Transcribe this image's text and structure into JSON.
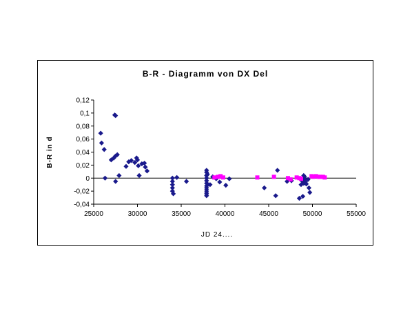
{
  "chart_data": {
    "type": "scatter",
    "title": "B-R - Diagramm von DX Del",
    "xlabel": "JD 24....",
    "ylabel": "B-R in d",
    "xlim": [
      25000,
      55000
    ],
    "ylim": [
      -0.04,
      0.12
    ],
    "x_ticks": [
      "25000",
      "30000",
      "35000",
      "40000",
      "45000",
      "50000",
      "55000"
    ],
    "y_ticks": [
      "-0,04",
      "-0,02",
      "0",
      "0,02",
      "0,04",
      "0,06",
      "0,08",
      "0,1",
      "0,12"
    ],
    "grid": false,
    "zero_line": true,
    "series": [
      {
        "marker": "diamond",
        "color": "#1a1a8c",
        "points": [
          [
            25800,
            0.069
          ],
          [
            25900,
            0.054
          ],
          [
            26200,
            0.044
          ],
          [
            26300,
            0.0
          ],
          [
            27000,
            0.028
          ],
          [
            27300,
            0.031
          ],
          [
            27500,
            0.034
          ],
          [
            27700,
            0.036
          ],
          [
            27400,
            0.097
          ],
          [
            27500,
            0.096
          ],
          [
            27500,
            -0.005
          ],
          [
            27900,
            0.004
          ],
          [
            28700,
            0.018
          ],
          [
            29000,
            0.025
          ],
          [
            29300,
            0.027
          ],
          [
            29700,
            0.024
          ],
          [
            29900,
            0.031
          ],
          [
            30000,
            0.028
          ],
          [
            30100,
            0.019
          ],
          [
            30200,
            0.004
          ],
          [
            30500,
            0.022
          ],
          [
            30800,
            0.023
          ],
          [
            30900,
            0.017
          ],
          [
            31100,
            0.011
          ],
          [
            34000,
            0.0
          ],
          [
            34000,
            -0.005
          ],
          [
            34000,
            -0.01
          ],
          [
            34000,
            -0.015
          ],
          [
            34000,
            -0.02
          ],
          [
            34100,
            -0.024
          ],
          [
            34500,
            0.001
          ],
          [
            35600,
            -0.005
          ],
          [
            37900,
            0.012
          ],
          [
            37900,
            0.009
          ],
          [
            37900,
            0.004
          ],
          [
            37900,
            0.0
          ],
          [
            37900,
            -0.004
          ],
          [
            37900,
            -0.008
          ],
          [
            37900,
            -0.012
          ],
          [
            37900,
            -0.015
          ],
          [
            37900,
            -0.018
          ],
          [
            37900,
            -0.021
          ],
          [
            37900,
            -0.024
          ],
          [
            37900,
            -0.027
          ],
          [
            38000,
            0.006
          ],
          [
            38000,
            -0.009
          ],
          [
            38300,
            -0.01
          ],
          [
            38600,
            0.002
          ],
          [
            39000,
            -0.001
          ],
          [
            39400,
            -0.006
          ],
          [
            40100,
            -0.011
          ],
          [
            40500,
            -0.001
          ],
          [
            44500,
            -0.015
          ],
          [
            45800,
            -0.027
          ],
          [
            46000,
            0.012
          ],
          [
            47100,
            -0.005
          ],
          [
            47600,
            -0.004
          ],
          [
            48500,
            -0.031
          ],
          [
            48900,
            -0.028
          ],
          [
            48700,
            -0.01
          ],
          [
            48800,
            -0.004
          ],
          [
            48900,
            0.0
          ],
          [
            49000,
            0.004
          ],
          [
            49000,
            -0.008
          ],
          [
            49100,
            0.002
          ],
          [
            49200,
            -0.002
          ],
          [
            49200,
            -0.006
          ],
          [
            49300,
            -0.009
          ],
          [
            49500,
            -0.002
          ],
          [
            49600,
            -0.015
          ],
          [
            49700,
            -0.022
          ]
        ]
      },
      {
        "marker": "square",
        "color": "#ff00ff",
        "points": [
          [
            38800,
            0.001
          ],
          [
            39200,
            0.002
          ],
          [
            39500,
            0.003
          ],
          [
            39800,
            0.001
          ],
          [
            43700,
            0.001
          ],
          [
            45600,
            0.002
          ],
          [
            47200,
            0.0
          ],
          [
            47500,
            -0.002
          ],
          [
            48200,
            0.001
          ],
          [
            48500,
            0.0
          ],
          [
            48700,
            -0.001
          ],
          [
            49900,
            0.003
          ],
          [
            50100,
            0.002
          ],
          [
            50400,
            0.003
          ],
          [
            50700,
            0.002
          ],
          [
            50900,
            0.002
          ],
          [
            51200,
            0.002
          ],
          [
            51400,
            0.001
          ]
        ]
      }
    ]
  }
}
